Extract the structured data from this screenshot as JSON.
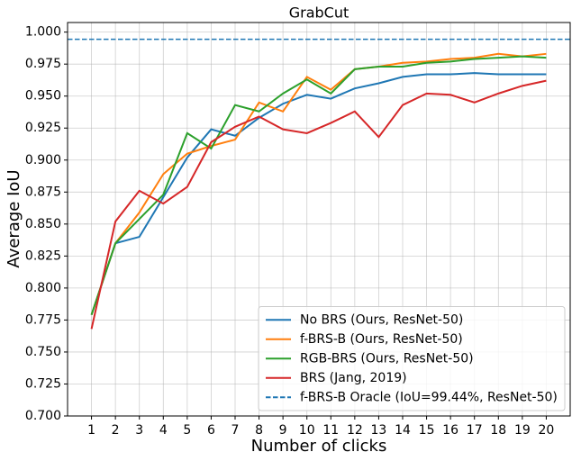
{
  "chart_data": {
    "type": "line",
    "title": "GrabCut",
    "x_label": "Number of clicks",
    "y_label": "Average IoU",
    "x": [
      1,
      2,
      3,
      4,
      5,
      6,
      7,
      8,
      9,
      10,
      11,
      12,
      13,
      14,
      15,
      16,
      17,
      18,
      19,
      20
    ],
    "series": [
      {
        "name": "No BRS (Ours, ResNet-50)",
        "color": "#1f77b4",
        "values": [
          0.779,
          0.835,
          0.84,
          0.871,
          0.902,
          0.924,
          0.919,
          0.933,
          0.944,
          0.951,
          0.948,
          0.956,
          0.96,
          0.965,
          0.967,
          0.967,
          0.968,
          0.967,
          0.967,
          0.967
        ]
      },
      {
        "name": "f-BRS-B (Ours, ResNet-50)",
        "color": "#ff7f0e",
        "values": [
          0.779,
          0.835,
          0.859,
          0.889,
          0.905,
          0.911,
          0.916,
          0.945,
          0.938,
          0.965,
          0.955,
          0.971,
          0.973,
          0.976,
          0.977,
          0.979,
          0.98,
          0.983,
          0.981,
          0.983
        ]
      },
      {
        "name": "RGB-BRS (Ours, ResNet-50)",
        "color": "#2ca02c",
        "values": [
          0.779,
          0.835,
          0.854,
          0.873,
          0.921,
          0.909,
          0.943,
          0.938,
          0.952,
          0.963,
          0.952,
          0.971,
          0.973,
          0.973,
          0.976,
          0.977,
          0.979,
          0.98,
          0.981,
          0.98
        ]
      },
      {
        "name": "BRS (Jang, 2019)",
        "color": "#d62728",
        "values": [
          0.768,
          0.852,
          0.876,
          0.866,
          0.879,
          0.914,
          0.926,
          0.934,
          0.924,
          0.921,
          0.929,
          0.938,
          0.918,
          0.943,
          0.952,
          0.951,
          0.945,
          0.952,
          0.958,
          0.962
        ]
      }
    ],
    "reference_lines": [
      {
        "name": "f-BRS-B Oracle (IoU=99.44%, ResNet-50)",
        "color": "#1f77b4",
        "value": 0.9944,
        "dashed": true
      }
    ],
    "xlim": [
      0,
      21
    ],
    "ylim": [
      0.7,
      1.0075
    ],
    "xticks": [
      1,
      2,
      3,
      4,
      5,
      6,
      7,
      8,
      9,
      10,
      11,
      12,
      13,
      14,
      15,
      16,
      17,
      18,
      19,
      20
    ],
    "yticks": [
      {
        "value": 0.7,
        "label": "0.700"
      },
      {
        "value": 0.725,
        "label": "0.725"
      },
      {
        "value": 0.75,
        "label": "0.750"
      },
      {
        "value": 0.775,
        "label": "0.775"
      },
      {
        "value": 0.8,
        "label": "0.800"
      },
      {
        "value": 0.825,
        "label": "0.825"
      },
      {
        "value": 0.85,
        "label": "0.850"
      },
      {
        "value": 0.875,
        "label": "0.875"
      },
      {
        "value": 0.9,
        "label": "0.900"
      },
      {
        "value": 0.925,
        "label": "0.925"
      },
      {
        "value": 0.95,
        "label": "0.950"
      },
      {
        "value": 0.975,
        "label": "0.975"
      },
      {
        "value": 1.0,
        "label": "1.000"
      }
    ],
    "grid": true,
    "legend_position": "lower right"
  }
}
